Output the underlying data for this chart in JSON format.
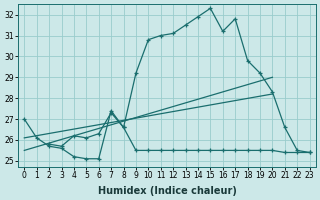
{
  "xlabel": "Humidex (Indice chaleur)",
  "bg_color": "#cce8e8",
  "grid_color": "#99cccc",
  "line_color": "#1a6e6e",
  "xlim": [
    -0.5,
    23.5
  ],
  "ylim": [
    24.7,
    32.5
  ],
  "xticks": [
    0,
    1,
    2,
    3,
    4,
    5,
    6,
    7,
    8,
    9,
    10,
    11,
    12,
    13,
    14,
    15,
    16,
    17,
    18,
    19,
    20,
    21,
    22,
    23
  ],
  "yticks": [
    25,
    26,
    27,
    28,
    29,
    30,
    31,
    32
  ],
  "line1_x": [
    0,
    1,
    2,
    3,
    4,
    5,
    6,
    7,
    8,
    9,
    10,
    11,
    12,
    13,
    14,
    15,
    16,
    17,
    18,
    19,
    20,
    21,
    22,
    23
  ],
  "line1_y": [
    27.0,
    26.1,
    25.7,
    25.6,
    25.2,
    25.1,
    25.1,
    27.4,
    26.6,
    25.5,
    25.5,
    25.5,
    25.5,
    25.5,
    25.5,
    25.5,
    25.5,
    25.5,
    25.5,
    25.5,
    25.5,
    25.4,
    25.4,
    25.4
  ],
  "line2_x": [
    2,
    3,
    4,
    5,
    6,
    7,
    8,
    9,
    10,
    11,
    12,
    13,
    14,
    15,
    16,
    17,
    18,
    19,
    20,
    21,
    22,
    23
  ],
  "line2_y": [
    25.8,
    25.7,
    26.2,
    26.1,
    26.3,
    27.3,
    26.6,
    29.2,
    30.8,
    31.0,
    31.1,
    31.5,
    31.9,
    32.3,
    31.2,
    31.8,
    29.8,
    29.2,
    28.3,
    26.6,
    25.5,
    25.4
  ],
  "line3_x": [
    0,
    20
  ],
  "line3_y": [
    25.5,
    29.0
  ],
  "line4_x": [
    0,
    20
  ],
  "line4_y": [
    26.1,
    28.2
  ],
  "xlabel_fontsize": 7,
  "tick_fontsize": 5.5
}
